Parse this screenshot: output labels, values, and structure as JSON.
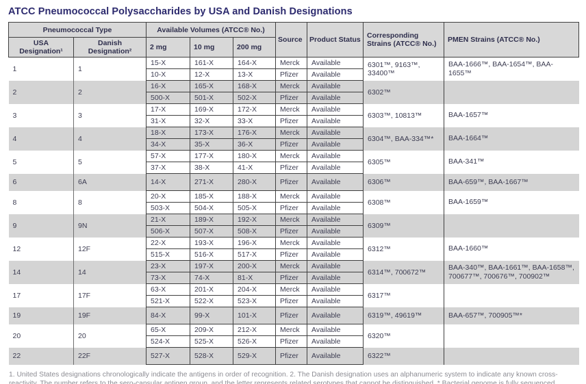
{
  "title": "ATCC Pneumococcal Polysaccharides by USA and Danish Designations",
  "colors": {
    "title_text": "#2c2a6e",
    "header_bg": "#d8d8d8",
    "stripe_bg": "#d4d4d4",
    "border": "#3f3f3f",
    "body_text": "#3d3d52",
    "footnote_text": "#8c8c93"
  },
  "table": {
    "header": {
      "pneumococcal_type": "Pneumococcal Type",
      "usa_designation": "USA Designation¹",
      "danish_designation": "Danish Designation²",
      "available_volumes": "Available Volumes (ATCC® No.)",
      "vol_2mg": "2 mg",
      "vol_10mg": "10 mg",
      "vol_200mg": "200 mg",
      "source": "Source",
      "product_status": "Product Status",
      "corresponding_strains": "Corresponding Strains (ATCC® No.)",
      "pmen_strains": "PMEN Strains (ATCC® No.)"
    },
    "groups": [
      {
        "usa": "1",
        "danish": "1",
        "rows": [
          {
            "v2": "15-X",
            "v10": "161-X",
            "v200": "164-X",
            "source": "Merck",
            "status": "Available"
          },
          {
            "v2": "10-X",
            "v10": "12-X",
            "v200": "13-X",
            "source": "Pfizer",
            "status": "Available"
          }
        ],
        "strains": "6301™, 9163™, 33400™",
        "pmen": "BAA-1666™, BAA-1654™, BAA-1655™"
      },
      {
        "usa": "2",
        "danish": "2",
        "rows": [
          {
            "v2": "16-X",
            "v10": "165-X",
            "v200": "168-X",
            "source": "Merck",
            "status": "Available"
          },
          {
            "v2": "500-X",
            "v10": "501-X",
            "v200": "502-X",
            "source": "Pfizer",
            "status": "Available"
          }
        ],
        "strains": "6302™",
        "pmen": ""
      },
      {
        "usa": "3",
        "danish": "3",
        "rows": [
          {
            "v2": "17-X",
            "v10": "169-X",
            "v200": "172-X",
            "source": "Merck",
            "status": "Available"
          },
          {
            "v2": "31-X",
            "v10": "32-X",
            "v200": "33-X",
            "source": "Pfizer",
            "status": "Available"
          }
        ],
        "strains": "6303™, 10813™",
        "pmen": "BAA-1657™"
      },
      {
        "usa": "4",
        "danish": "4",
        "rows": [
          {
            "v2": "18-X",
            "v10": "173-X",
            "v200": "176-X",
            "source": "Merck",
            "status": "Available"
          },
          {
            "v2": "34-X",
            "v10": "35-X",
            "v200": "36-X",
            "source": "Pfizer",
            "status": "Available"
          }
        ],
        "strains": "6304™, BAA-334™*",
        "pmen": "BAA-1664™"
      },
      {
        "usa": "5",
        "danish": "5",
        "rows": [
          {
            "v2": "57-X",
            "v10": "177-X",
            "v200": "180-X",
            "source": "Merck",
            "status": "Available"
          },
          {
            "v2": "37-X",
            "v10": "38-X",
            "v200": "41-X",
            "source": "Pfizer",
            "status": "Available"
          }
        ],
        "strains": "6305™",
        "pmen": "BAA-341™"
      },
      {
        "usa": "6",
        "danish": "6A",
        "rows": [
          {
            "v2": "14-X",
            "v10": "271-X",
            "v200": "280-X",
            "source": "Pfizer",
            "status": "Available"
          }
        ],
        "strains": "6306™",
        "pmen": "BAA-659™, BAA-1667™"
      },
      {
        "usa": "8",
        "danish": "8",
        "rows": [
          {
            "v2": "20-X",
            "v10": "185-X",
            "v200": "188-X",
            "source": "Merck",
            "status": "Available"
          },
          {
            "v2": "503-X",
            "v10": "504-X",
            "v200": "505-X",
            "source": "Pfizer",
            "status": "Available"
          }
        ],
        "strains": "6308™",
        "pmen": "BAA-1659™"
      },
      {
        "usa": "9",
        "danish": "9N",
        "rows": [
          {
            "v2": "21-X",
            "v10": "189-X",
            "v200": "192-X",
            "source": "Merck",
            "status": "Available"
          },
          {
            "v2": "506-X",
            "v10": "507-X",
            "v200": "508-X",
            "source": "Pfizer",
            "status": "Available"
          }
        ],
        "strains": "6309™",
        "pmen": ""
      },
      {
        "usa": "12",
        "danish": "12F",
        "rows": [
          {
            "v2": "22-X",
            "v10": "193-X",
            "v200": "196-X",
            "source": "Merck",
            "status": "Available"
          },
          {
            "v2": "515-X",
            "v10": "516-X",
            "v200": "517-X",
            "source": "Pfizer",
            "status": "Available"
          }
        ],
        "strains": "6312™",
        "pmen": "BAA-1660™"
      },
      {
        "usa": "14",
        "danish": "14",
        "rows": [
          {
            "v2": "23-X",
            "v10": "197-X",
            "v200": "200-X",
            "source": "Merck",
            "status": "Available"
          },
          {
            "v2": "73-X",
            "v10": "74-X",
            "v200": "81-X",
            "source": "Pfizer",
            "status": "Available"
          }
        ],
        "strains": "6314™, 700672™",
        "pmen": "BAA-340™, BAA-1661™, BAA-1658™, 700677™, 700676™, 700902™"
      },
      {
        "usa": "17",
        "danish": "17F",
        "rows": [
          {
            "v2": "63-X",
            "v10": "201-X",
            "v200": "204-X",
            "source": "Merck",
            "status": "Available"
          },
          {
            "v2": "521-X",
            "v10": "522-X",
            "v200": "523-X",
            "source": "Pfizer",
            "status": "Available"
          }
        ],
        "strains": "6317™",
        "pmen": ""
      },
      {
        "usa": "19",
        "danish": "19F",
        "rows": [
          {
            "v2": "84-X",
            "v10": "99-X",
            "v200": "101-X",
            "source": "Pfizer",
            "status": "Available"
          }
        ],
        "strains": "6319™, 49619™",
        "pmen": "BAA-657™, 700905™*"
      },
      {
        "usa": "20",
        "danish": "20",
        "rows": [
          {
            "v2": "65-X",
            "v10": "209-X",
            "v200": "212-X",
            "source": "Merck",
            "status": "Available"
          },
          {
            "v2": "524-X",
            "v10": "525-X",
            "v200": "526-X",
            "source": "Pfizer",
            "status": "Available"
          }
        ],
        "strains": "6320™",
        "pmen": ""
      },
      {
        "usa": "22",
        "danish": "22F",
        "rows": [
          {
            "v2": "527-X",
            "v10": "528-X",
            "v200": "529-X",
            "source": "Pfizer",
            "status": "Available"
          }
        ],
        "strains": "6322™",
        "pmen": ""
      }
    ]
  },
  "footnote": "1. United States designations chronologically indicate the antigens in order of recognition. 2. The Danish designation uses an alphanumeric system to indicate any known cross-reactivity. The number refers to the sero-capsular antigen group, and the letter represents related serotypes that cannot be distinguished. * Bacterial genome is fully sequenced"
}
